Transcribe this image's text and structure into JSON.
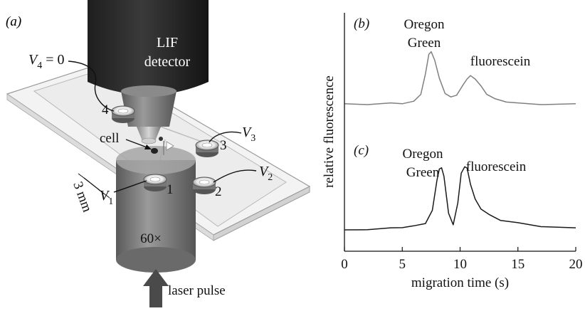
{
  "panel_a": {
    "label": "(a)",
    "detector_line1": "LIF",
    "detector_line2": "detector",
    "v4": {
      "sym": "V",
      "sub": "4",
      "rest": " = 0"
    },
    "v3": {
      "sym": "V",
      "sub": "3"
    },
    "v2": {
      "sym": "V",
      "sub": "2"
    },
    "v1": {
      "sym": "V",
      "sub": "1"
    },
    "cell_label": "cell",
    "reservoir_1": "1",
    "reservoir_2": "2",
    "reservoir_3": "3",
    "reservoir_4": "4",
    "scale_label": "3 mm",
    "objective_label": "60×",
    "laser_label": "laser pulse"
  },
  "colors": {
    "trace_b": "#808080",
    "trace_c": "#1a1a1a",
    "detector": "#2c2c2c",
    "objective": "#7a7a7a"
  },
  "chart_data": [
    {
      "panel": "(b)",
      "type": "line",
      "title": "",
      "xlabel": "migration time (s)",
      "ylabel": "relative fluorescence",
      "xlim": [
        0,
        20
      ],
      "x_ticks": [
        "0",
        "5",
        "10",
        "15",
        "20"
      ],
      "peaks": [
        {
          "label_line1": "Oregon",
          "label_line2": "Green",
          "x": 7.5
        },
        {
          "label_line1": "fluorescein",
          "label_line2": "",
          "x": 10.9
        }
      ],
      "series": [
        {
          "x": [
            0,
            2,
            4,
            5,
            6,
            6.6,
            7,
            7.3,
            7.5,
            7.8,
            8.2,
            8.7,
            9.2,
            9.7,
            10.2,
            10.6,
            10.9,
            11.3,
            11.8,
            12.3,
            13,
            14,
            15,
            17,
            20
          ],
          "y": [
            0.03,
            0.03,
            0.04,
            0.04,
            0.06,
            0.15,
            0.38,
            0.62,
            0.64,
            0.55,
            0.33,
            0.16,
            0.11,
            0.14,
            0.24,
            0.33,
            0.36,
            0.33,
            0.24,
            0.15,
            0.09,
            0.06,
            0.04,
            0.03,
            0.03
          ]
        }
      ]
    },
    {
      "panel": "(c)",
      "type": "line",
      "title": "",
      "xlabel": "migration time (s)",
      "ylabel": "relative fluorescence",
      "xlim": [
        0,
        20
      ],
      "x_ticks": [
        "0",
        "5",
        "10",
        "15",
        "20"
      ],
      "peaks": [
        {
          "label_line1": "Oregon",
          "label_line2": "Green",
          "x": 8.4
        },
        {
          "label_line1": "fluorescein",
          "label_line2": "",
          "x": 10.5
        }
      ],
      "series": [
        {
          "x": [
            0,
            2,
            4,
            5,
            6,
            7,
            7.6,
            8,
            8.2,
            8.4,
            8.6,
            9,
            9.4,
            9.8,
            10.1,
            10.4,
            10.6,
            10.9,
            11.3,
            11.8,
            12.5,
            13.5,
            15,
            17,
            20
          ],
          "y": [
            0.03,
            0.04,
            0.05,
            0.06,
            0.07,
            0.1,
            0.22,
            0.52,
            0.62,
            0.64,
            0.55,
            0.2,
            0.08,
            0.3,
            0.58,
            0.65,
            0.63,
            0.48,
            0.33,
            0.24,
            0.18,
            0.13,
            0.1,
            0.07,
            0.05
          ]
        }
      ]
    }
  ]
}
